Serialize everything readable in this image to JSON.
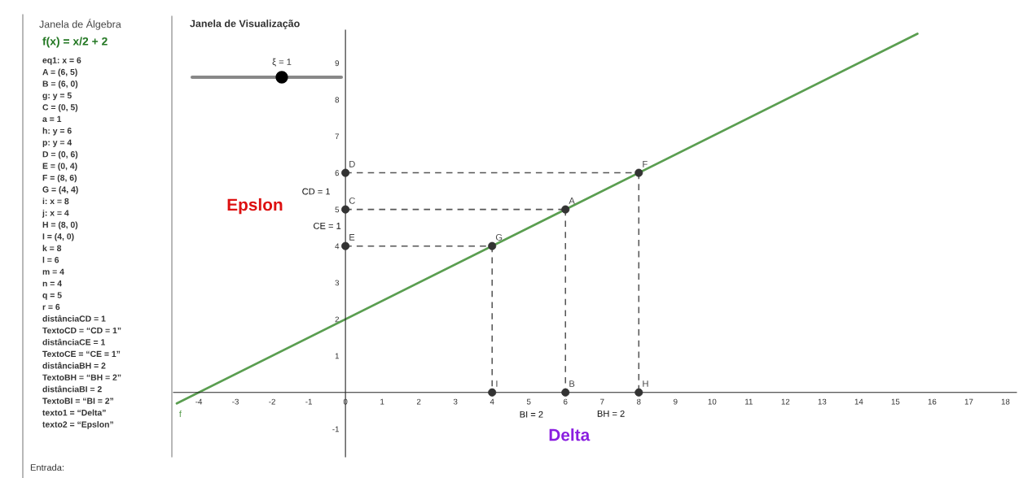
{
  "chart_data": {
    "type": "line",
    "xlim": [
      -4.69,
      18.3
    ],
    "ylim": [
      -1.76,
      9.9
    ],
    "xticks": [
      -4,
      -3,
      -2,
      -1,
      0,
      1,
      2,
      3,
      4,
      5,
      6,
      7,
      8,
      9,
      10,
      11,
      12,
      13,
      14,
      15,
      16,
      17,
      18
    ],
    "yticks": [
      -1,
      1,
      2,
      3,
      4,
      5,
      6,
      7,
      8,
      9
    ],
    "grid": false,
    "legend": false,
    "series": [
      {
        "name": "f",
        "color": "#5a9e50",
        "line_style": "solid",
        "x": [
          -4.6,
          15.6
        ],
        "values": [
          -0.3,
          9.8
        ]
      },
      {
        "color": "#555555",
        "line_style": "dashed",
        "x": [
          0,
          8
        ],
        "values": [
          6,
          6
        ]
      },
      {
        "color": "#555555",
        "line_style": "dashed",
        "x": [
          0,
          6
        ],
        "values": [
          5,
          5
        ]
      },
      {
        "color": "#555555",
        "line_style": "dashed",
        "x": [
          0,
          4
        ],
        "values": [
          4,
          4
        ]
      },
      {
        "color": "#555555",
        "line_style": "dashed",
        "x": [
          4,
          4
        ],
        "values": [
          4,
          0
        ]
      },
      {
        "color": "#555555",
        "line_style": "dashed",
        "x": [
          6,
          6
        ],
        "values": [
          5,
          0
        ]
      },
      {
        "color": "#555555",
        "line_style": "dashed",
        "x": [
          8,
          8
        ],
        "values": [
          6,
          0
        ]
      },
      {
        "type": "scatter",
        "color": "#333333",
        "marker": "circle",
        "x": [
          0,
          0,
          0,
          4,
          6,
          8,
          4,
          6,
          8
        ],
        "values": [
          6,
          5,
          4,
          4,
          5,
          6,
          0,
          0,
          0
        ]
      }
    ],
    "annotations": [
      {
        "text": "D",
        "x": 0,
        "y": 6
      },
      {
        "text": "C",
        "x": 0,
        "y": 5
      },
      {
        "text": "E",
        "x": 0,
        "y": 4
      },
      {
        "text": "G",
        "x": 4,
        "y": 4
      },
      {
        "text": "A",
        "x": 6,
        "y": 5
      },
      {
        "text": "F",
        "x": 8,
        "y": 6
      },
      {
        "text": "I",
        "x": 4,
        "y": 0
      },
      {
        "text": "B",
        "x": 6,
        "y": 0
      },
      {
        "text": "H",
        "x": 8,
        "y": 0
      },
      "Janela de Álgebra",
      "Janela de Visualização",
      "ξ = 1",
      "CD = 1",
      "CE = 1",
      "BI = 2",
      "BH = 2",
      "Epslon",
      "Delta",
      "Entrada:",
      "f(x) = x/2 + 2",
      "eq1: x = 6",
      "A = (6, 5)",
      "B = (6, 0)",
      "g: y = 5",
      "C = (0, 5)",
      "a = 1",
      "h: y = 6",
      "p: y = 4",
      "D = (0, 6)",
      "E = (0, 4)",
      "F = (8, 6)",
      "G = (4, 4)",
      "i: x = 8",
      "j: x = 4",
      "H = (8, 0)",
      "I = (4, 0)",
      "k = 8",
      "l = 6",
      "m = 4",
      "n = 4",
      "q = 5",
      "r = 6",
      "distânciaCD = 1",
      "TextoCD = “CD = 1”",
      "distânciaCE = 1",
      "TextoCE = “CE = 1”",
      "distânciaBH = 2",
      "TextoBH = “BH = 2”",
      "distânciaBI = 2",
      "TextoBI = “BI = 2”",
      "texto1 = “Delta”",
      "texto2 = “Epslon”"
    ]
  }
}
